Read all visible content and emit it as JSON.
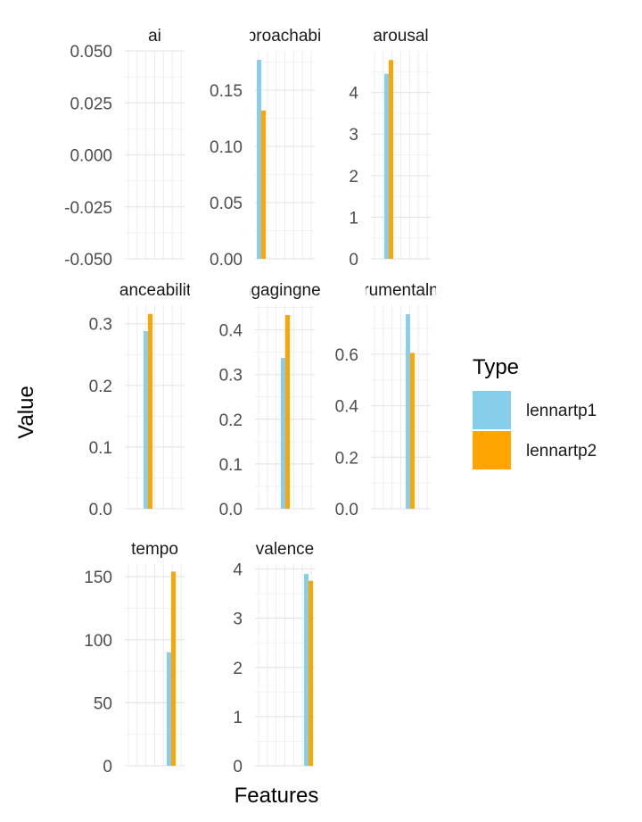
{
  "chart_data": {
    "type": "bar",
    "layout": "faceted-3-column",
    "xlabel": "Features",
    "ylabel": "Value",
    "legend": {
      "title": "Type",
      "placement": "right",
      "entries": [
        {
          "name": "lennartp1",
          "color": "#87CEEB"
        },
        {
          "name": "lennartp2",
          "color": "#FFA500"
        }
      ]
    },
    "grid": true,
    "panels": [
      {
        "label": "ai",
        "ylim": [
          -0.05,
          0.05
        ],
        "ticks": [
          "-0.050",
          "-0.025",
          "0.000",
          "0.025",
          "0.050"
        ],
        "tick_values": [
          -0.05,
          -0.025,
          0,
          0.025,
          0.05
        ],
        "values": {
          "lennartp1": null,
          "lennartp2": null
        }
      },
      {
        "label": "approachability",
        "ylim": [
          0,
          0.185
        ],
        "ticks": [
          "0.00",
          "0.05",
          "0.10",
          "0.15"
        ],
        "tick_values": [
          0,
          0.05,
          0.1,
          0.15
        ],
        "values": {
          "lennartp1": 0.177,
          "lennartp2": 0.132
        }
      },
      {
        "label": "arousal",
        "ylim": [
          0,
          5.0
        ],
        "ticks": [
          "0",
          "1",
          "2",
          "3",
          "4"
        ],
        "tick_values": [
          0,
          1,
          2,
          3,
          4
        ],
        "values": {
          "lennartp1": 4.45,
          "lennartp2": 4.78
        }
      },
      {
        "label": "danceability",
        "ylim": [
          0,
          0.33
        ],
        "ticks": [
          "0.0",
          "0.1",
          "0.2",
          "0.3"
        ],
        "tick_values": [
          0,
          0.1,
          0.2,
          0.3
        ],
        "values": {
          "lennartp1": 0.288,
          "lennartp2": 0.316
        }
      },
      {
        "label": "engagingness",
        "ylim": [
          0,
          0.455
        ],
        "ticks": [
          "0.0",
          "0.1",
          "0.2",
          "0.3",
          "0.4"
        ],
        "tick_values": [
          0,
          0.1,
          0.2,
          0.3,
          0.4
        ],
        "values": {
          "lennartp1": 0.337,
          "lennartp2": 0.433
        }
      },
      {
        "label": "instrumentalness",
        "ylim": [
          0,
          0.79
        ],
        "ticks": [
          "0.0",
          "0.2",
          "0.4",
          "0.6"
        ],
        "tick_values": [
          0,
          0.2,
          0.4,
          0.6
        ],
        "values": {
          "lennartp1": 0.755,
          "lennartp2": 0.605
        }
      },
      {
        "label": "tempo",
        "ylim": [
          0,
          160
        ],
        "ticks": [
          "0",
          "50",
          "100",
          "150"
        ],
        "tick_values": [
          0,
          50,
          100,
          150
        ],
        "values": {
          "lennartp1": 90,
          "lennartp2": 154
        }
      },
      {
        "label": "valence",
        "ylim": [
          0,
          4.1
        ],
        "ticks": [
          "0",
          "1",
          "2",
          "3",
          "4"
        ],
        "tick_values": [
          0,
          1,
          2,
          3,
          4
        ],
        "values": {
          "lennartp1": 3.9,
          "lennartp2": 3.76
        }
      }
    ]
  }
}
